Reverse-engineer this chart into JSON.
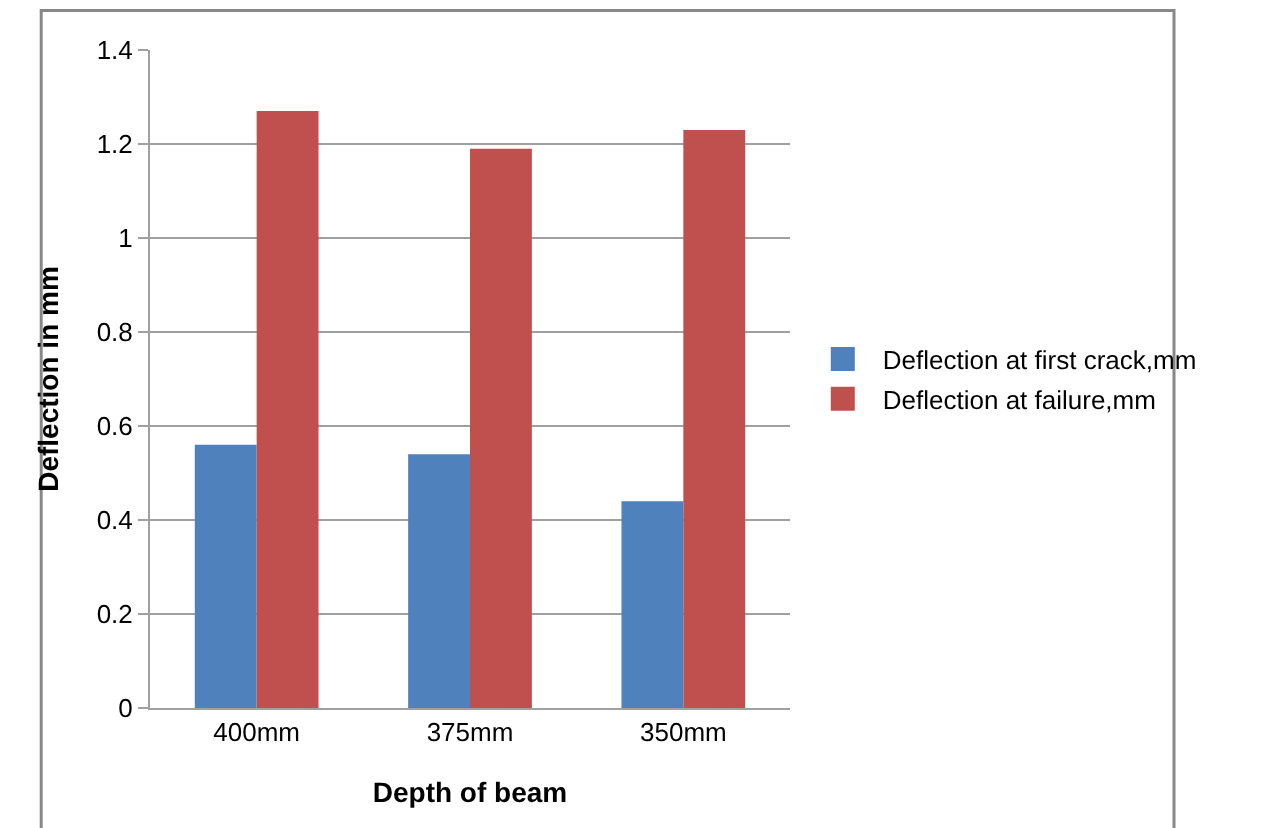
{
  "chart_data": {
    "type": "bar",
    "xlabel": "Depth of beam",
    "ylabel": "Deflection in mm",
    "categories": [
      "400mm",
      "375mm",
      "350mm"
    ],
    "series": [
      {
        "name": "Deflection at first crack,mm",
        "color": "#4f81bd",
        "values": [
          0.56,
          0.54,
          0.44
        ]
      },
      {
        "name": "Deflection at failure,mm",
        "color": "#c0504d",
        "values": [
          1.27,
          1.19,
          1.23
        ]
      }
    ],
    "ylim": [
      0,
      1.4
    ],
    "yticks": [
      0,
      0.2,
      0.4,
      0.6,
      0.8,
      1,
      1.2,
      1.4
    ],
    "grid": "y",
    "legend": "right"
  }
}
